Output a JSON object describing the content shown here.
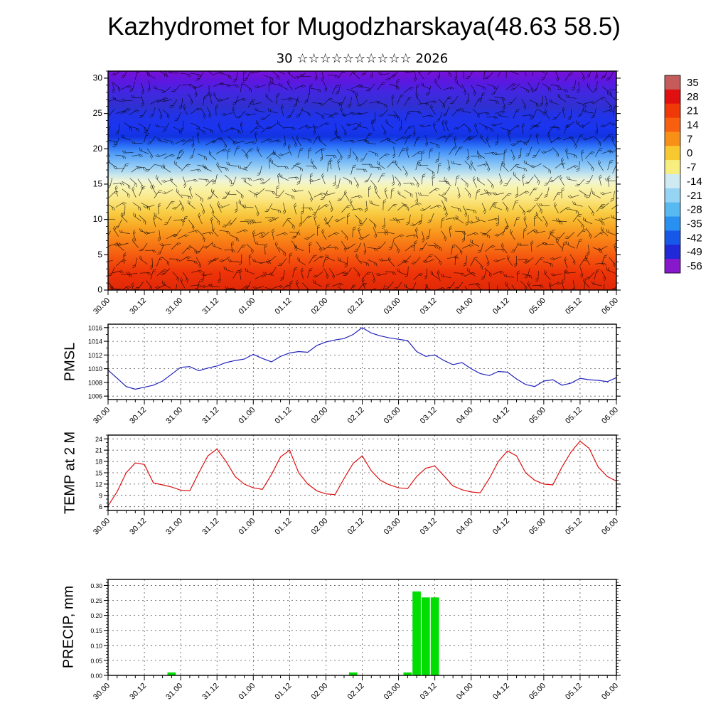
{
  "title": "Kazhydromet for Mugodzharskaya(48.63 58.5)",
  "time_axis": {
    "range": [
      0,
      168
    ],
    "minor_step": 3,
    "major_step": 12,
    "hours": [
      0,
      12,
      24,
      36,
      48,
      60,
      72,
      84,
      96,
      108,
      120,
      132,
      144,
      156,
      168
    ],
    "labels": [
      "30.00",
      "30.12",
      "31.00",
      "31.12",
      "01.00",
      "01.12",
      "02.00",
      "02.12",
      "03.00",
      "03.12",
      "04.00",
      "04.12",
      "05.00",
      "05.12",
      "06.00"
    ]
  },
  "chart_data": [
    {
      "id": "cross",
      "type": "heatmap",
      "title": "30 ☆☆☆☆☆☆☆☆☆☆ 2026",
      "ylim": [
        0,
        31
      ],
      "yticks": [
        0,
        5,
        10,
        15,
        20,
        25,
        30
      ],
      "y_minor": 1,
      "y_decimals": 0,
      "tick_font": 12,
      "gradient_stops": [
        [
          0.0,
          "#7a10d8"
        ],
        [
          0.05,
          "#5a18e0"
        ],
        [
          0.1,
          "#4028e0"
        ],
        [
          0.16,
          "#3030d0"
        ],
        [
          0.2,
          "#2233e8"
        ],
        [
          0.26,
          "#1a35f0"
        ],
        [
          0.3,
          "#1133e0"
        ],
        [
          0.34,
          "#2a6ef5"
        ],
        [
          0.38,
          "#55a0f8"
        ],
        [
          0.43,
          "#8cc8f5"
        ],
        [
          0.47,
          "#c2e4ee"
        ],
        [
          0.5,
          "#eef4d8"
        ],
        [
          0.53,
          "#f8f4b0"
        ],
        [
          0.58,
          "#fae888"
        ],
        [
          0.64,
          "#f8d048"
        ],
        [
          0.7,
          "#f8ae28"
        ],
        [
          0.76,
          "#f88818"
        ],
        [
          0.84,
          "#f55c10"
        ],
        [
          0.92,
          "#ee3408"
        ],
        [
          1.0,
          "#e02808"
        ]
      ],
      "colorbar": {
        "levels": [
          35,
          28,
          21,
          14,
          7,
          0,
          -7,
          -14,
          -21,
          -28,
          -35,
          -42,
          -49,
          -56
        ],
        "colors": [
          "#c65b5b",
          "#e01010",
          "#f03808",
          "#f86010",
          "#f89018",
          "#f8c830",
          "#f8ee80",
          "#cfeaf2",
          "#96d4f4",
          "#58b8f0",
          "#2890f0",
          "#1858e8",
          "#2028d8",
          "#8818cc"
        ]
      }
    },
    {
      "id": "pmsl",
      "type": "line",
      "label": "PMSL",
      "color": "#2222bb",
      "ylim": [
        1005.5,
        1016.5
      ],
      "yticks": [
        1006,
        1008,
        1010,
        1012,
        1014,
        1016
      ],
      "y_minor": 1,
      "y_decimals": 0,
      "tick_font": 9,
      "x_start": 0,
      "x_step": 3,
      "values": [
        1009.8,
        1008.6,
        1007.4,
        1007.0,
        1007.3,
        1007.6,
        1008.2,
        1009.2,
        1010.2,
        1010.3,
        1009.7,
        1010.1,
        1010.4,
        1010.9,
        1011.2,
        1011.4,
        1012.1,
        1011.5,
        1011.0,
        1011.8,
        1012.3,
        1012.5,
        1012.4,
        1013.4,
        1013.9,
        1014.2,
        1014.4,
        1015.0,
        1016.0,
        1015.2,
        1014.8,
        1014.5,
        1014.3,
        1014.1,
        1012.5,
        1011.8,
        1012.0,
        1011.2,
        1010.6,
        1010.9,
        1010.0,
        1009.3,
        1009.0,
        1009.6,
        1009.5,
        1008.5,
        1007.7,
        1007.4,
        1008.2,
        1008.4,
        1007.6,
        1007.9,
        1008.6,
        1008.4,
        1008.3,
        1008.1,
        1008.7
      ]
    },
    {
      "id": "temp2m",
      "type": "line",
      "label": "TEMP at 2 M",
      "color": "#dd1111",
      "ylim": [
        5,
        25
      ],
      "yticks": [
        6,
        9,
        12,
        15,
        18,
        21,
        24
      ],
      "y_minor": 1,
      "y_decimals": 0,
      "tick_font": 9,
      "x_start": 0,
      "x_step": 3,
      "values": [
        6.2,
        10.0,
        15.0,
        17.6,
        17.2,
        12.3,
        11.8,
        11.2,
        10.4,
        10.2,
        15.0,
        19.5,
        21.3,
        18.0,
        14.0,
        12.0,
        11.0,
        10.6,
        14.5,
        19.2,
        21.0,
        15.0,
        12.0,
        10.2,
        9.4,
        9.2,
        13.5,
        17.5,
        19.5,
        15.5,
        13.0,
        11.8,
        11.0,
        10.8,
        14.0,
        16.2,
        16.8,
        14.2,
        11.5,
        10.5,
        9.9,
        9.7,
        13.5,
        18.0,
        20.8,
        19.5,
        15.0,
        13.0,
        12.0,
        11.8,
        16.5,
        20.5,
        23.4,
        21.5,
        16.5,
        14.0,
        12.8
      ]
    },
    {
      "id": "precip",
      "type": "bar",
      "label": "PRECIP, mm",
      "color": "#00dd00",
      "ylim": [
        0,
        0.32
      ],
      "yticks": [
        0,
        0.05,
        0.1,
        0.15,
        0.2,
        0.25,
        0.3
      ],
      "y_minor": 0.01,
      "y_decimals": 2,
      "tick_font": 8.5,
      "x_start": 0,
      "x_step": 3,
      "values": [
        0,
        0,
        0,
        0,
        0,
        0,
        0,
        0.01,
        0,
        0,
        0,
        0,
        0,
        0,
        0,
        0,
        0,
        0,
        0,
        0,
        0,
        0,
        0,
        0,
        0,
        0,
        0,
        0.01,
        0,
        0,
        0,
        0,
        0,
        0.01,
        0.28,
        0.26,
        0.26,
        0,
        0,
        0,
        0,
        0,
        0,
        0,
        0,
        0,
        0,
        0,
        0,
        0,
        0,
        0,
        0,
        0,
        0,
        0,
        0
      ]
    }
  ]
}
